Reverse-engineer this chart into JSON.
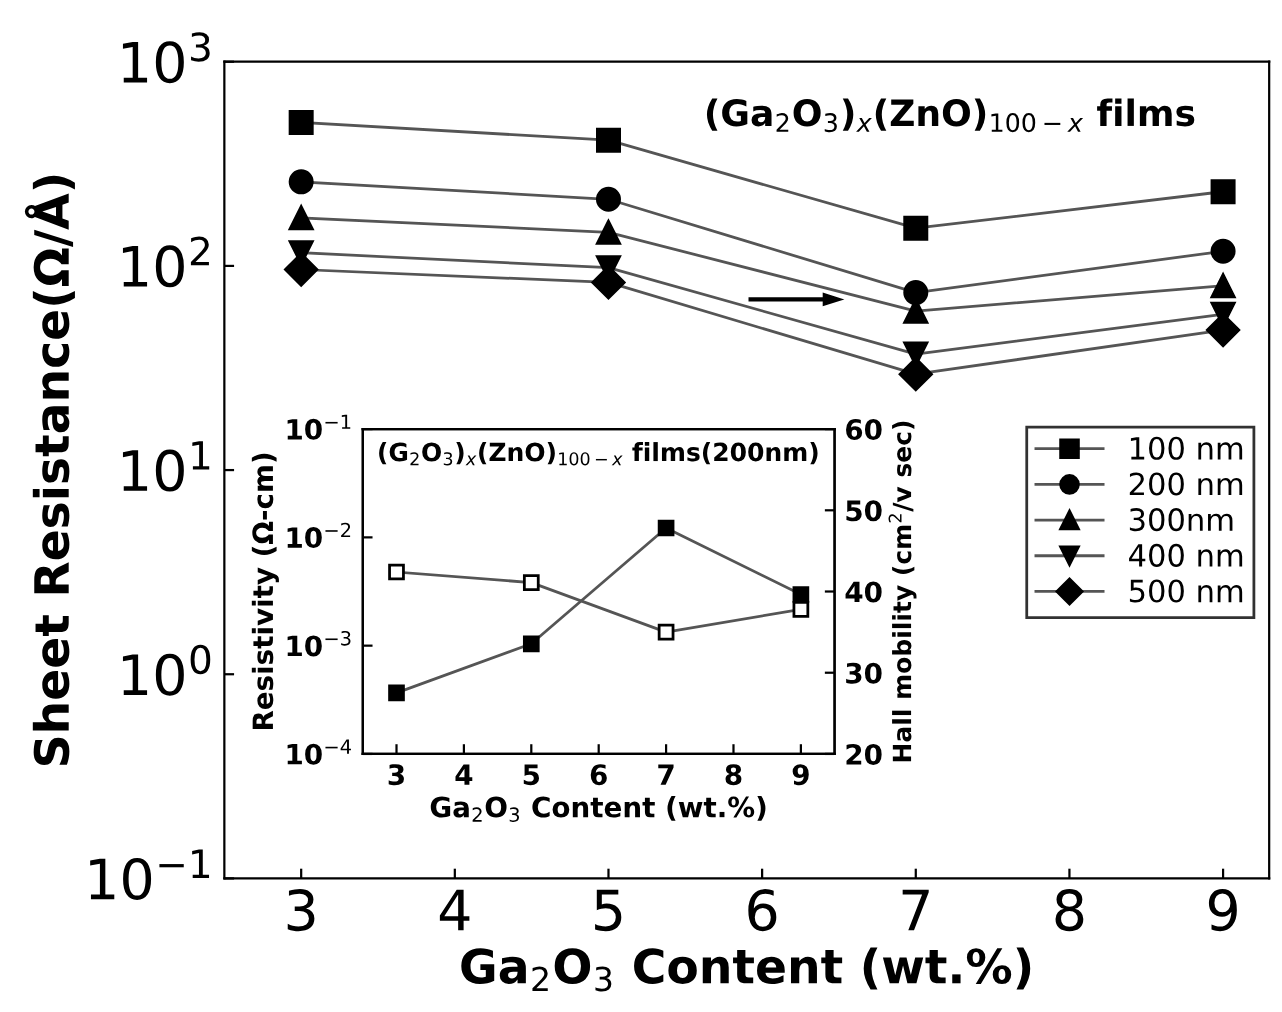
{
  "chart_data": [
    {
      "type": "line",
      "xlabel": "Ga$_{2}$O$_{3}$ Content (wt.%)",
      "ylabel": "Sheet Resistance(Ω/Å)",
      "log": "y",
      "xlim": [
        2.5,
        9.3
      ],
      "xticks": [
        3,
        4,
        5,
        6,
        7,
        8,
        9
      ],
      "ylim": [
        0.1,
        1000
      ],
      "yticks": [
        {
          "value": 0.1,
          "label": "10$^{−1}$"
        },
        {
          "value": 1,
          "label": "10$^{0}$"
        },
        {
          "value": 10,
          "label": "10$^{1}$"
        },
        {
          "value": 100,
          "label": "10$^{2}$"
        },
        {
          "value": 1000,
          "label": "10$^{3}$"
        }
      ],
      "grid": false,
      "legend": "right",
      "x": [
        3,
        5,
        7,
        9
      ],
      "annotations": [
        "(Ga$_{2}$O$_{3}$)$_{x}$(ZnO)$_{100−x}$ films"
      ],
      "series": [
        {
          "name": "100 nm",
          "color": "#000000",
          "marker": "square",
          "values": [
            504,
            413,
            153,
            231
          ]
        },
        {
          "name": "200 nm",
          "color": "#000000",
          "marker": "circle",
          "values": [
            258,
            212,
            74,
            118
          ]
        },
        {
          "name": "300nm",
          "color": "#000000",
          "marker": "triangle",
          "values": [
            172,
            146,
            60,
            80
          ]
        },
        {
          "name": "400 nm",
          "color": "#000000",
          "marker": "triangle-down",
          "values": [
            116,
            98,
            37,
            58
          ]
        },
        {
          "name": "500 nm",
          "color": "#000000",
          "marker": "diamond",
          "values": [
            96,
            83,
            29.5,
            48.5
          ]
        }
      ]
    },
    {
      "type": "line",
      "title": "(G$_{2}$O$_{3}$)$_{x}$(ZnO)$_{100−x}$ films(200nm)",
      "xlabel": "Ga$_{2}$O$_{3}$ Content (wt.%)",
      "ylabel": "Resistivity (Ω-cm)",
      "y2label": "Hall mobility (cm$^{2}$/v sec)",
      "log": "y",
      "xlim": [
        2.5,
        9.5
      ],
      "xticks": [
        3,
        4,
        5,
        6,
        7,
        8,
        9
      ],
      "ylim": [
        0.0001,
        0.1
      ],
      "yticks": [
        {
          "value": 0.0001,
          "label": "10$^{−4}$"
        },
        {
          "value": 0.001,
          "label": "10$^{−3}$"
        },
        {
          "value": 0.01,
          "label": "10$^{−2}$"
        },
        {
          "value": 0.1,
          "label": "10$^{−1}$"
        }
      ],
      "y2lim": [
        20,
        60
      ],
      "y2ticks": [
        20,
        30,
        40,
        50,
        60
      ],
      "grid": false,
      "x": [
        3,
        5,
        7,
        9
      ],
      "series": [
        {
          "color": "#000000",
          "marker": "square",
          "values": [
            0.000366,
            0.00104,
            0.0122,
            0.00297
          ]
        },
        {
          "color": "#000000",
          "marker": "square-open",
          "axis": "y2",
          "values": [
            42.4,
            41.1,
            35.0,
            37.8
          ]
        }
      ]
    }
  ]
}
